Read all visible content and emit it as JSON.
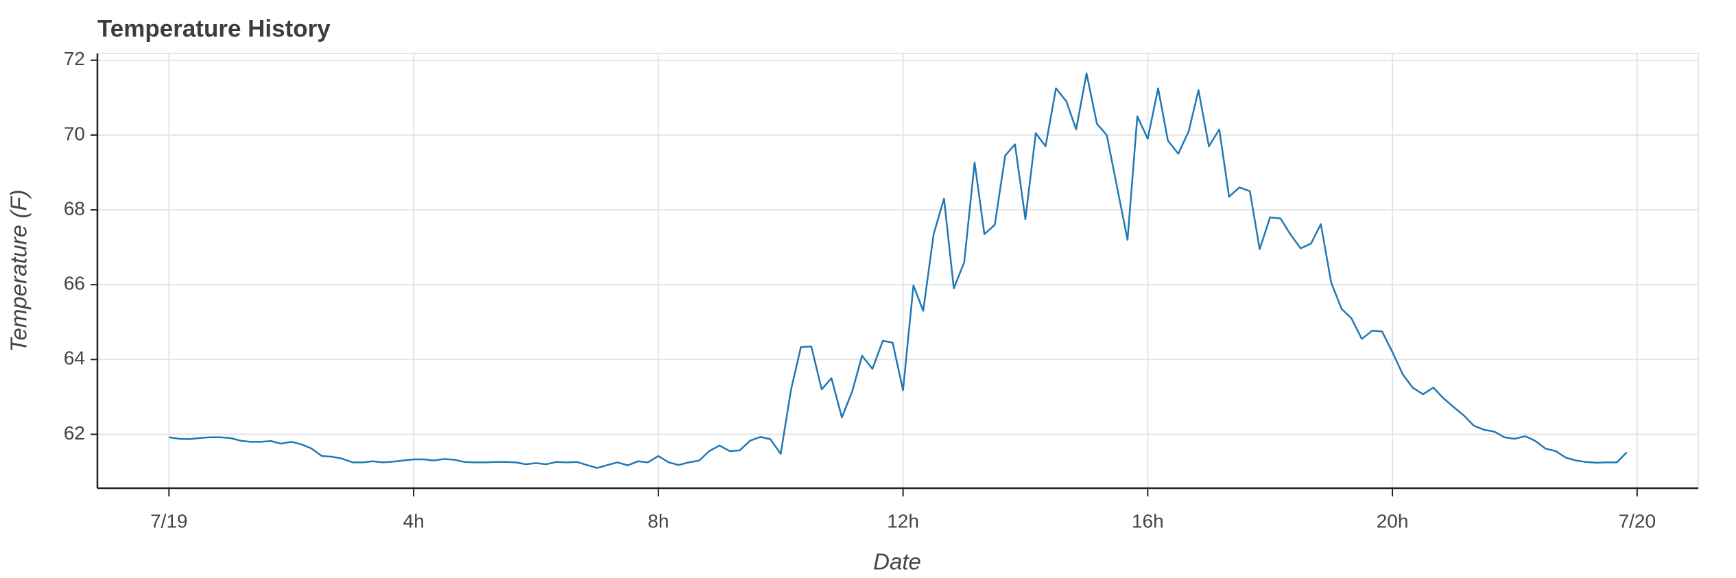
{
  "chart_data": {
    "type": "line",
    "title": "Temperature History",
    "x_label": "Date",
    "y_label": "Temperature (F)",
    "x": [
      0,
      0.17,
      0.33,
      0.5,
      0.67,
      0.83,
      1,
      1.17,
      1.33,
      1.5,
      1.67,
      1.83,
      2,
      2.17,
      2.33,
      2.5,
      2.67,
      2.83,
      3,
      3.17,
      3.33,
      3.5,
      3.67,
      3.83,
      4,
      4.17,
      4.33,
      4.5,
      4.67,
      4.83,
      5,
      5.17,
      5.33,
      5.5,
      5.67,
      5.83,
      6,
      6.17,
      6.33,
      6.5,
      6.67,
      6.83,
      7,
      7.17,
      7.33,
      7.5,
      7.67,
      7.83,
      8,
      8.17,
      8.33,
      8.5,
      8.67,
      8.83,
      9,
      9.17,
      9.33,
      9.5,
      9.67,
      9.83,
      10,
      10.17,
      10.33,
      10.5,
      10.67,
      10.83,
      11,
      11.17,
      11.33,
      11.5,
      11.67,
      11.83,
      12,
      12.17,
      12.33,
      12.5,
      12.67,
      12.83,
      13,
      13.17,
      13.33,
      13.5,
      13.67,
      13.83,
      14,
      14.17,
      14.33,
      14.5,
      14.67,
      14.83,
      15,
      15.17,
      15.33,
      15.5,
      15.67,
      15.83,
      16,
      16.17,
      16.33,
      16.5,
      16.67,
      16.83,
      17,
      17.17,
      17.33,
      17.5,
      17.67,
      17.83,
      18,
      18.17,
      18.33,
      18.5,
      18.67,
      18.83,
      19,
      19.17,
      19.33,
      19.5,
      19.67,
      19.83,
      20,
      20.17,
      20.33,
      20.5,
      20.67,
      20.83,
      21,
      21.17,
      21.33,
      21.5,
      21.67,
      21.83,
      22,
      22.17,
      22.33,
      22.5,
      22.67,
      22.83,
      23,
      23.17,
      23.33,
      23.5,
      23.67,
      23.83
    ],
    "series": [
      {
        "name": "Temperature",
        "color": "#1f77b4",
        "values": [
          61.92,
          61.88,
          61.87,
          61.9,
          61.92,
          61.92,
          61.9,
          61.83,
          61.8,
          61.8,
          61.82,
          61.75,
          61.8,
          61.73,
          61.62,
          61.42,
          61.4,
          61.35,
          61.25,
          61.25,
          61.28,
          61.25,
          61.27,
          61.3,
          61.33,
          61.33,
          61.3,
          61.34,
          61.32,
          61.26,
          61.25,
          61.25,
          61.26,
          61.26,
          61.25,
          61.2,
          61.23,
          61.2,
          61.26,
          61.25,
          61.26,
          61.18,
          61.1,
          61.18,
          61.25,
          61.17,
          61.28,
          61.25,
          61.42,
          61.25,
          61.18,
          61.25,
          61.3,
          61.55,
          61.7,
          61.55,
          61.57,
          61.83,
          61.93,
          61.87,
          61.48,
          63.2,
          64.33,
          64.35,
          63.2,
          63.5,
          62.45,
          63.15,
          64.1,
          63.75,
          64.5,
          64.45,
          63.18,
          65.98,
          65.3,
          67.35,
          68.3,
          65.9,
          66.6,
          69.27,
          67.35,
          67.6,
          69.45,
          69.75,
          67.75,
          70.05,
          69.7,
          71.25,
          70.9,
          70.15,
          71.65,
          70.3,
          70.0,
          68.6,
          67.2,
          70.5,
          69.9,
          71.25,
          69.85,
          69.5,
          70.1,
          71.2,
          69.7,
          70.15,
          68.35,
          68.6,
          68.5,
          66.95,
          67.8,
          67.77,
          67.35,
          66.97,
          67.1,
          67.62,
          66.05,
          65.35,
          65.1,
          64.55,
          64.77,
          64.75,
          64.2,
          63.6,
          63.25,
          63.07,
          63.25,
          62.97,
          62.73,
          62.5,
          62.23,
          62.12,
          62.07,
          61.92,
          61.88,
          61.95,
          61.83,
          61.62,
          61.55,
          61.38,
          61.3,
          61.26,
          61.24,
          61.25,
          61.25,
          61.52
        ]
      }
    ],
    "xlim": [
      -1.17,
      25.0
    ],
    "xticks": [
      {
        "value": 0,
        "label": "7/19"
      },
      {
        "value": 4,
        "label": "4h"
      },
      {
        "value": 8,
        "label": "8h"
      },
      {
        "value": 12,
        "label": "12h"
      },
      {
        "value": 16,
        "label": "16h"
      },
      {
        "value": 20,
        "label": "20h"
      },
      {
        "value": 24,
        "label": "7/20"
      }
    ],
    "ylim": [
      60.56,
      72.18
    ],
    "yticks": [
      62,
      64,
      66,
      68,
      70,
      72
    ],
    "grid": true
  }
}
